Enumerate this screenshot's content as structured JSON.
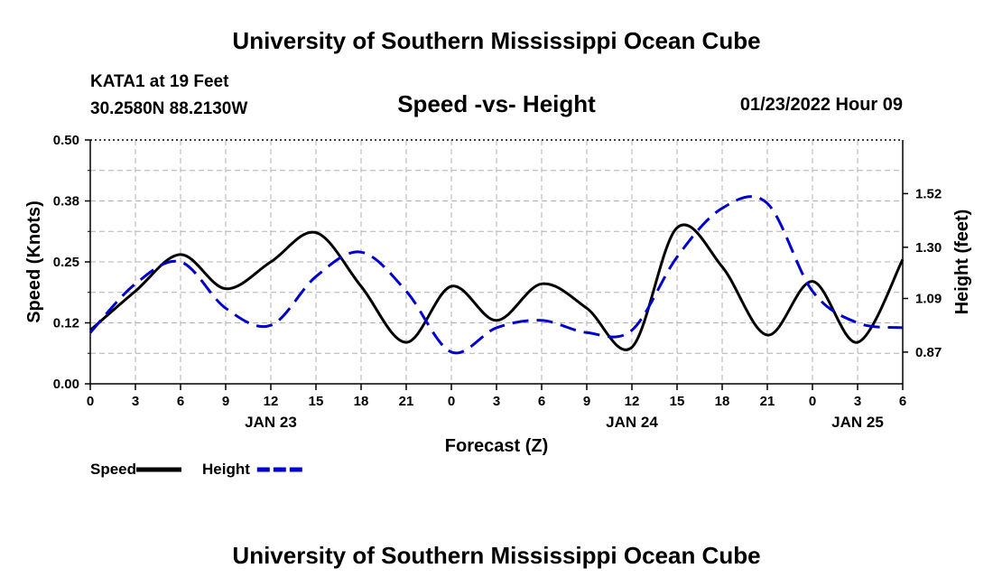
{
  "header": {
    "title": "University of Southern Mississippi Ocean Cube",
    "station_line1": "KATA1 at 19 Feet",
    "station_line2": "30.2580N  88.2130W",
    "subtitle": "Speed -vs- Height",
    "datetime": "01/23/2022 Hour 09"
  },
  "footer": {
    "title": "University of Southern Mississippi Ocean Cube"
  },
  "colors": {
    "speed": "#000000",
    "height": "#0000cc",
    "grid": "#b0b0b0"
  },
  "chart_data": {
    "type": "line",
    "title": "Speed -vs- Height",
    "xlabel": "Forecast (Z)",
    "ylabel": "Speed (Knots)",
    "y2label": "Height (feet)",
    "xlim": [
      0,
      54
    ],
    "ylim": [
      0,
      0.5
    ],
    "y2lim": [
      0.74,
      1.74
    ],
    "x_ticks": [
      0,
      3,
      6,
      9,
      12,
      15,
      18,
      21,
      24,
      27,
      30,
      33,
      36,
      39,
      42,
      45,
      48,
      51,
      54
    ],
    "x_tick_labels": [
      "0",
      "3",
      "6",
      "9",
      "12",
      "15",
      "18",
      "21",
      "0",
      "3",
      "6",
      "9",
      "12",
      "15",
      "18",
      "21",
      "0",
      "3",
      "6"
    ],
    "date_labels": [
      {
        "x": 12,
        "label": "JAN 23"
      },
      {
        "x": 36,
        "label": "JAN 24"
      },
      {
        "x": 51,
        "label": "JAN 25"
      }
    ],
    "y_ticks": [
      "0.00",
      "0.12",
      "0.25",
      "0.38",
      "0.50"
    ],
    "y_tick_values": [
      0.0,
      0.125,
      0.25,
      0.375,
      0.5
    ],
    "y2_ticks": [
      "0.87",
      "1.09",
      "1.30",
      "1.52"
    ],
    "y2_tick_values": [
      0.87,
      1.09,
      1.3,
      1.52
    ],
    "series": [
      {
        "name": "Speed",
        "axis": "left",
        "style": "solid",
        "x": [
          0,
          3,
          6,
          9,
          12,
          15,
          18,
          21,
          24,
          27,
          30,
          33,
          36,
          39,
          42,
          45,
          48,
          51,
          54
        ],
        "values": [
          0.11,
          0.19,
          0.265,
          0.195,
          0.25,
          0.31,
          0.2,
          0.085,
          0.2,
          0.13,
          0.205,
          0.155,
          0.075,
          0.32,
          0.24,
          0.1,
          0.21,
          0.085,
          0.255
        ]
      },
      {
        "name": "Height",
        "axis": "right",
        "style": "dashed",
        "x": [
          0,
          3,
          6,
          9,
          12,
          15,
          18,
          21,
          24,
          27,
          30,
          33,
          36,
          39,
          42,
          45,
          48,
          51,
          54
        ],
        "values": [
          0.95,
          1.15,
          1.24,
          1.05,
          0.98,
          1.18,
          1.28,
          1.12,
          0.87,
          0.97,
          1.0,
          0.95,
          0.96,
          1.26,
          1.46,
          1.48,
          1.12,
          0.99,
          0.97
        ]
      }
    ],
    "legend": [
      {
        "label": "Speed",
        "series": "Speed"
      },
      {
        "label": "Height",
        "series": "Height"
      }
    ],
    "legend_position": "bottom-left",
    "grid": true
  }
}
